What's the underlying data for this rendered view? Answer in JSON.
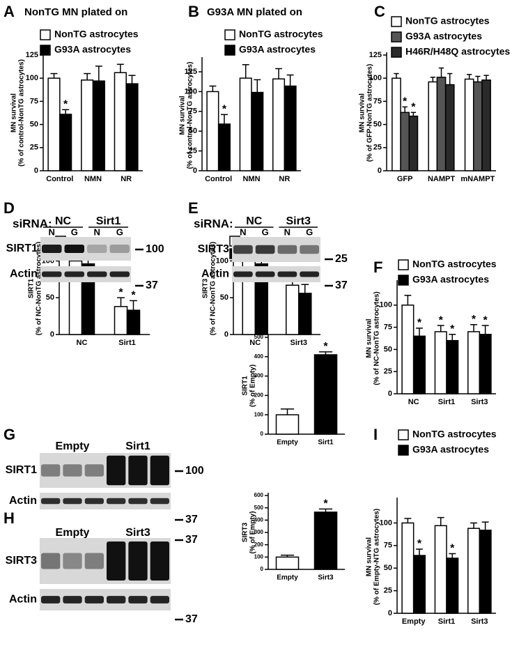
{
  "chart_data": [
    {
      "type": "bar",
      "panel": "A",
      "title": "NonTG MN plated on",
      "ylabel": [
        "MN survival",
        "(% of control-NonTG astrocytes)"
      ],
      "categories": [
        "Control",
        "NMN",
        "NR"
      ],
      "ylim": [
        0,
        125
      ],
      "yticks": [
        0,
        25,
        50,
        75,
        100,
        125
      ],
      "series": [
        {
          "name": "NonTG astrocytes",
          "color": "#ffffff",
          "values": [
            100,
            98,
            106
          ],
          "errors": [
            5,
            7,
            9
          ],
          "significance": [
            null,
            null,
            null
          ]
        },
        {
          "name": "G93A astrocytes",
          "color": "#000000",
          "values": [
            61,
            97,
            94
          ],
          "errors": [
            5,
            16,
            9
          ],
          "significance": [
            "*",
            null,
            null
          ]
        }
      ]
    },
    {
      "type": "bar",
      "panel": "B",
      "title": "G93A MN plated on",
      "ylabel": [
        "MN survival",
        "(% of control-NonTG astrocytes)"
      ],
      "categories": [
        "Control",
        "NMN",
        "NR"
      ],
      "ylim": [
        0,
        140
      ],
      "yticks": [
        0,
        25,
        50,
        75,
        100,
        125
      ],
      "series": [
        {
          "name": "NonTG astrocytes",
          "color": "#ffffff",
          "values": [
            100,
            117,
            116
          ],
          "errors": [
            7,
            17,
            13
          ],
          "significance": [
            null,
            null,
            null
          ]
        },
        {
          "name": "G93A astrocytes",
          "color": "#000000",
          "values": [
            59,
            99,
            107
          ],
          "errors": [
            12,
            16,
            14
          ],
          "significance": [
            "*",
            null,
            null
          ]
        }
      ]
    },
    {
      "type": "bar",
      "panel": "C",
      "ylabel": [
        "MN survival",
        "(% of GFP-NonTG astrocytes)"
      ],
      "categories": [
        "GFP",
        "NAMPT",
        "mNAMPT"
      ],
      "ylim": [
        0,
        125
      ],
      "yticks": [
        0,
        25,
        50,
        75,
        100,
        125
      ],
      "series": [
        {
          "name": "NonTG astrocytes",
          "color": "#ffffff",
          "values": [
            100,
            96,
            99
          ],
          "errors": [
            5,
            5,
            5
          ],
          "significance": [
            null,
            null,
            null
          ]
        },
        {
          "name": "G93A astrocytes",
          "color": "#555555",
          "values": [
            63,
            101,
            96
          ],
          "errors": [
            6,
            10,
            6
          ],
          "significance": [
            "*",
            null,
            null
          ]
        },
        {
          "name": "H46R/H48Q astrocytes",
          "color": "#2a2a2a",
          "values": [
            59,
            93,
            98
          ],
          "errors": [
            4,
            12,
            5
          ],
          "significance": [
            "*",
            null,
            null
          ]
        }
      ]
    },
    {
      "type": "bar",
      "ylabel": [
        "SIRT1",
        "(% of NC-NonTG astrocytes)"
      ],
      "categories": [
        "NC",
        "Sirt1"
      ],
      "ylim": [
        0,
        125
      ],
      "yticks": [
        0,
        50,
        100
      ],
      "series": [
        {
          "name": "NonTG",
          "color": "#ffffff",
          "values": [
            100,
            38
          ],
          "errors": [
            8,
            12
          ],
          "significance": [
            null,
            "*"
          ]
        },
        {
          "name": "G93A",
          "color": "#000000",
          "values": [
            96,
            33
          ],
          "errors": [
            22,
            13
          ],
          "significance": [
            null,
            "*"
          ]
        }
      ]
    },
    {
      "type": "bar",
      "ylabel": [
        "SIRT3",
        "(% of NC-NonTG astrocytes)"
      ],
      "categories": [
        "NC",
        "Sirt3"
      ],
      "ylim": [
        0,
        125
      ],
      "yticks": [
        0,
        50,
        100
      ],
      "series": [
        {
          "name": "NonTG",
          "color": "#ffffff",
          "values": [
            100,
            67
          ],
          "errors": [
            22,
            6
          ],
          "significance": [
            null,
            "*"
          ]
        },
        {
          "name": "G93A",
          "color": "#000000",
          "values": [
            96,
            56
          ],
          "errors": [
            13,
            12
          ],
          "significance": [
            null,
            "*"
          ]
        }
      ]
    },
    {
      "type": "bar",
      "panel": "F",
      "ylabel": [
        "MN survival",
        "(% of NC-NonTG astrocytes)"
      ],
      "categories": [
        "NC",
        "Sirt1",
        "Sirt3"
      ],
      "ylim": [
        0,
        125
      ],
      "yticks": [
        0,
        25,
        50,
        75,
        100
      ],
      "series": [
        {
          "name": "NonTG astrocytes",
          "color": "#ffffff",
          "values": [
            100,
            70,
            70
          ],
          "errors": [
            11,
            7,
            8
          ],
          "significance": [
            null,
            "*",
            "*"
          ]
        },
        {
          "name": "G93A astrocytes",
          "color": "#000000",
          "values": [
            65,
            60,
            67
          ],
          "errors": [
            9,
            7,
            10
          ],
          "significance": [
            "*",
            "*",
            "*"
          ]
        }
      ]
    },
    {
      "type": "bar",
      "ylabel": [
        "SIRT1",
        "(% of Empty)"
      ],
      "categories": [
        "Empty",
        "Sirt1"
      ],
      "ylim": [
        0,
        500
      ],
      "yticks": [
        0,
        100,
        200,
        300,
        400,
        500
      ],
      "values": [
        100,
        410
      ],
      "errors": [
        30,
        15
      ],
      "colors": [
        "#ffffff",
        "#000000"
      ],
      "significance": [
        null,
        "*"
      ]
    },
    {
      "type": "bar",
      "ylabel": [
        "SIRT3",
        "(% of Empty)"
      ],
      "categories": [
        "Empty",
        "Sirt3"
      ],
      "ylim": [
        0,
        600
      ],
      "yticks": [
        0,
        100,
        200,
        300,
        400,
        500,
        600
      ],
      "values": [
        100,
        465
      ],
      "errors": [
        15,
        25
      ],
      "colors": [
        "#ffffff",
        "#000000"
      ],
      "significance": [
        null,
        "*"
      ]
    },
    {
      "type": "bar",
      "panel": "I",
      "ylabel": [
        "MN survival",
        "(% of Empty-NTG astrocytes)"
      ],
      "categories": [
        "Empty",
        "Sirt1",
        "Sirt3"
      ],
      "ylim": [
        0,
        125
      ],
      "yticks": [
        0,
        25,
        50,
        75,
        100
      ],
      "series": [
        {
          "name": "NonTG astrocytes",
          "color": "#ffffff",
          "values": [
            100,
            97,
            94
          ],
          "errors": [
            5,
            9,
            6
          ],
          "significance": [
            null,
            null,
            null
          ]
        },
        {
          "name": "G93A astrocytes",
          "color": "#000000",
          "values": [
            64,
            61,
            92
          ],
          "errors": [
            7,
            5,
            9
          ],
          "significance": [
            "*",
            "*",
            null
          ]
        }
      ]
    }
  ],
  "blots": [
    {
      "panel": "D",
      "prefix": "siRNA:",
      "groups": [
        "NC",
        "Sirt1"
      ],
      "lanes": [
        "N",
        "G",
        "N",
        "G"
      ],
      "rows": [
        "SIRT1",
        "Actin"
      ],
      "markers": [
        100,
        37
      ]
    },
    {
      "panel": "E",
      "prefix": "siRNA:",
      "groups": [
        "NC",
        "Sirt3"
      ],
      "lanes": [
        "N",
        "G",
        "N",
        "G"
      ],
      "rows": [
        "SIRT3",
        "Actin"
      ],
      "markers": [
        25,
        37
      ]
    },
    {
      "panel": "G",
      "groups": [
        "Empty",
        "Sirt1"
      ],
      "rows": [
        "SIRT1",
        "Actin"
      ],
      "markers": [
        100,
        37
      ]
    },
    {
      "panel": "H",
      "groups": [
        "Empty",
        "Sirt3"
      ],
      "rows": [
        "SIRT3",
        "Actin"
      ],
      "markers": [
        37,
        37
      ]
    }
  ]
}
